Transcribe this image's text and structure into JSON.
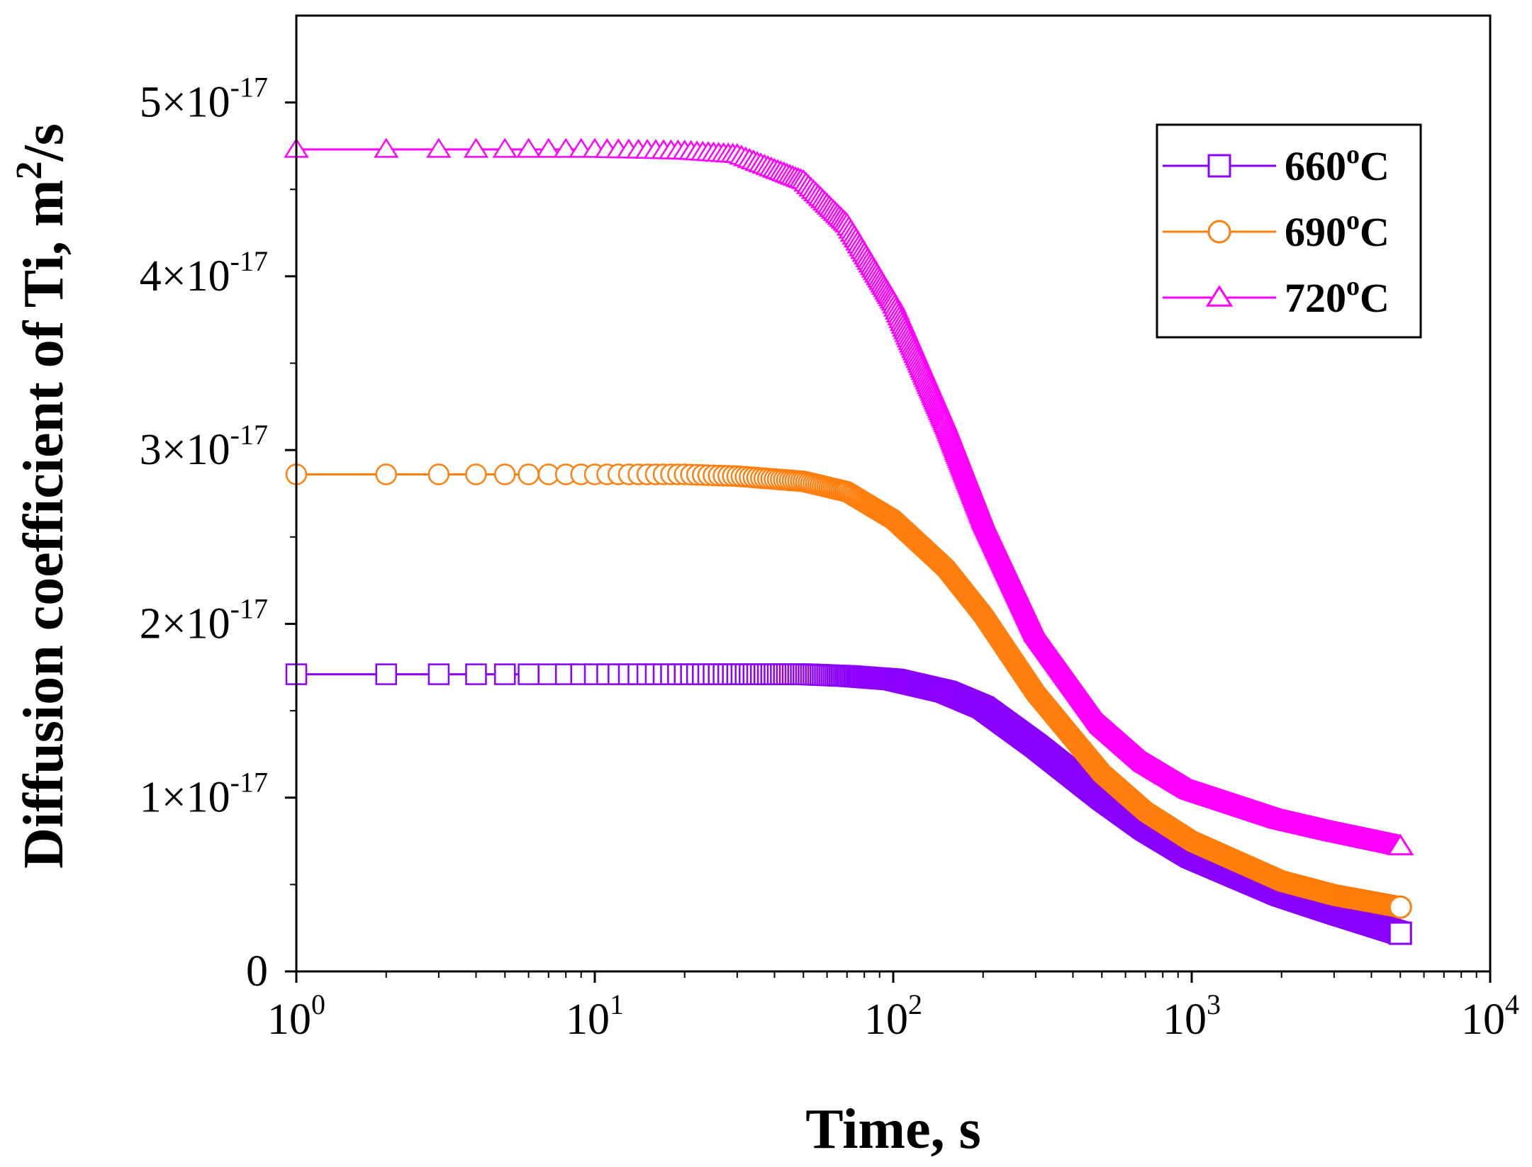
{
  "chart_data": {
    "type": "scatter",
    "xlabel": "Time, s",
    "ylabel": "Diffusion coefficient of Ti, m²/s",
    "ylabel_parts": {
      "text": "Diffusion coefficient of Ti, m",
      "sup": "2",
      "tail": "/s"
    },
    "x_scale": "log",
    "xlim": [
      1,
      10000
    ],
    "ylim": [
      0,
      5.5e-17
    ],
    "x_ticks": [
      {
        "value": 1,
        "base": "10",
        "exp": "0"
      },
      {
        "value": 10,
        "base": "10",
        "exp": "1"
      },
      {
        "value": 100,
        "base": "10",
        "exp": "2"
      },
      {
        "value": 1000,
        "base": "10",
        "exp": "3"
      },
      {
        "value": 10000,
        "base": "10",
        "exp": "4"
      }
    ],
    "y_ticks": [
      {
        "value": 0,
        "mantissa": "0",
        "exp": ""
      },
      {
        "value": 1e-17,
        "mantissa": "1×10",
        "exp": "-17"
      },
      {
        "value": 2e-17,
        "mantissa": "2×10",
        "exp": "-17"
      },
      {
        "value": 3e-17,
        "mantissa": "3×10",
        "exp": "-17"
      },
      {
        "value": 4e-17,
        "mantissa": "4×10",
        "exp": "-17"
      },
      {
        "value": 5e-17,
        "mantissa": "5×10",
        "exp": "-17"
      }
    ],
    "grid": false,
    "legend_position": "top-right",
    "series": [
      {
        "name": "660°C",
        "label_main": "660",
        "label_sup": "o",
        "label_tail": "C",
        "color": "#8B00FF",
        "marker": "square",
        "x": [
          1,
          2,
          3,
          5,
          10,
          20,
          30,
          50,
          70,
          100,
          150,
          200,
          300,
          500,
          700,
          1000,
          2000,
          3000,
          5000
        ],
        "y": [
          1.71e-17,
          1.71e-17,
          1.71e-17,
          1.71e-17,
          1.71e-17,
          1.71e-17,
          1.71e-17,
          1.71e-17,
          1.7e-17,
          1.68e-17,
          1.61e-17,
          1.52e-17,
          1.3e-17,
          1e-17,
          8.2e-18,
          6.6e-18,
          4.4e-18,
          3.4e-18,
          2.2e-18
        ]
      },
      {
        "name": "690°C",
        "label_main": "690",
        "label_sup": "o",
        "label_tail": "C",
        "color": "#FF7F0E",
        "marker": "circle",
        "x": [
          1,
          2,
          3,
          5,
          10,
          20,
          30,
          50,
          70,
          100,
          150,
          200,
          300,
          500,
          700,
          1000,
          2000,
          3000,
          5000
        ],
        "y": [
          2.86e-17,
          2.86e-17,
          2.86e-17,
          2.86e-17,
          2.86e-17,
          2.86e-17,
          2.85e-17,
          2.82e-17,
          2.76e-17,
          2.6e-17,
          2.32e-17,
          2.05e-17,
          1.6e-17,
          1.14e-17,
          9.2e-18,
          7.5e-18,
          5.2e-18,
          4.4e-18,
          3.7e-18
        ]
      },
      {
        "name": "720°C",
        "label_main": "720",
        "label_sup": "o",
        "label_tail": "C",
        "color": "#FF00FF",
        "marker": "triangle",
        "x": [
          1,
          2,
          3,
          5,
          10,
          20,
          30,
          50,
          70,
          100,
          150,
          200,
          300,
          500,
          700,
          1000,
          2000,
          3000,
          5000
        ],
        "y": [
          4.73e-17,
          4.73e-17,
          4.73e-17,
          4.73e-17,
          4.73e-17,
          4.72e-17,
          4.7e-17,
          4.55e-17,
          4.3e-17,
          3.85e-17,
          3.15e-17,
          2.6e-17,
          1.95e-17,
          1.42e-17,
          1.2e-17,
          1.04e-17,
          8.7e-18,
          8e-18,
          7.2e-18
        ]
      }
    ]
  }
}
